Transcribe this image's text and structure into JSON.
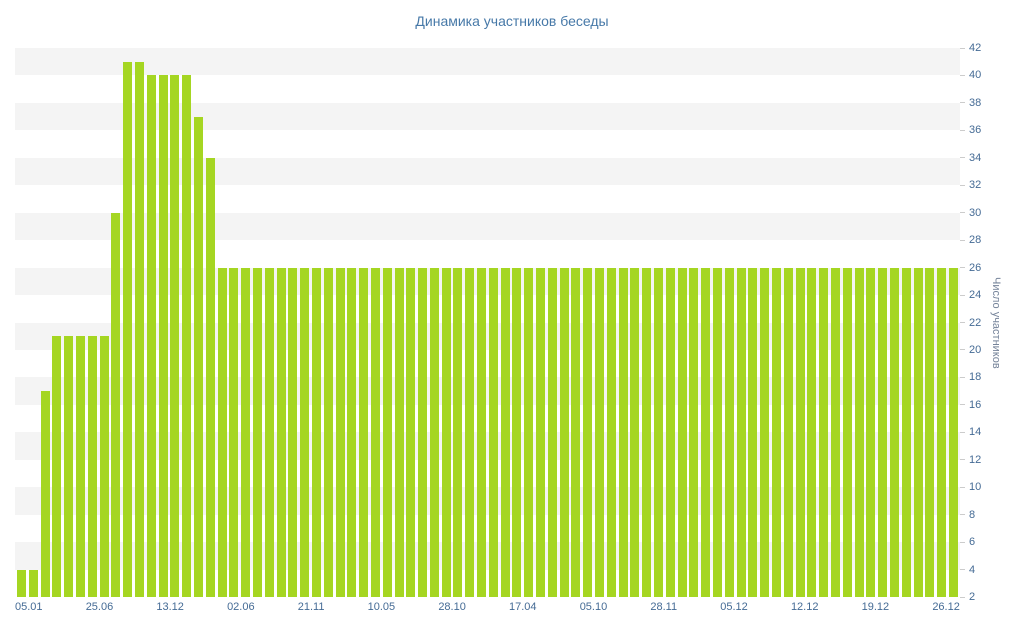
{
  "chart_data": {
    "type": "bar",
    "title": "Динамика участников беседы",
    "xlabel": "",
    "ylabel": "Число участников",
    "ylim": [
      2,
      42
    ],
    "ytick_step": 2,
    "yticks": [
      42,
      40,
      38,
      36,
      34,
      32,
      30,
      28,
      26,
      24,
      22,
      20,
      18,
      16,
      14,
      12,
      10,
      8,
      6,
      4,
      2
    ],
    "x_tick_labels": [
      "05.01",
      "25.06",
      "13.12",
      "02.06",
      "21.11",
      "10.05",
      "28.10",
      "17.04",
      "05.10",
      "28.11",
      "05.12",
      "12.12",
      "19.12",
      "26.12"
    ],
    "values": [
      4,
      4,
      17,
      21,
      21,
      21,
      21,
      21,
      30,
      41,
      41,
      40,
      40,
      40,
      40,
      37,
      34,
      26,
      26,
      26,
      26,
      26,
      26,
      26,
      26,
      26,
      26,
      26,
      26,
      26,
      26,
      26,
      26,
      26,
      26,
      26,
      26,
      26,
      26,
      26,
      26,
      26,
      26,
      26,
      26,
      26,
      26,
      26,
      26,
      26,
      26,
      26,
      26,
      26,
      26,
      26,
      26,
      26,
      26,
      26,
      26,
      26,
      26,
      26,
      26,
      26,
      26,
      26,
      26,
      26,
      26,
      26,
      26,
      26,
      26,
      26,
      26,
      26,
      26,
      26
    ],
    "legend": "none",
    "grid": "striped-horizontal-bands"
  },
  "colors": {
    "bar": "#a5d622",
    "title": "#4779a8",
    "tick": "#456b95",
    "y_axis_title": "#76849a",
    "stripe": "#f4f4f4",
    "background": "#ffffff"
  }
}
